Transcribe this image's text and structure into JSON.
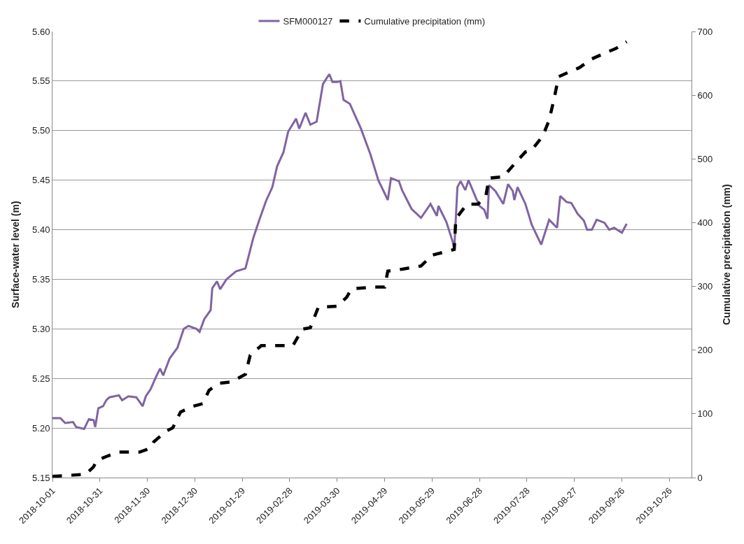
{
  "chart_data": {
    "type": "line",
    "ylabel": "Surface-water level (m)",
    "y2label": "Cumulative precipitation (mm)",
    "xlim": [
      "2018-10-01",
      "2019-11-09"
    ],
    "xticks": [
      "2018-10-01",
      "2018-10-31",
      "2018-11-30",
      "2018-12-30",
      "2019-01-29",
      "2019-02-28",
      "2019-03-30",
      "2019-04-29",
      "2019-05-29",
      "2019-06-28",
      "2019-07-28",
      "2019-08-27",
      "2019-09-26",
      "2019-10-26"
    ],
    "ylim": [
      5.15,
      5.6
    ],
    "yticks": [
      {
        "value": 5.15,
        "label": "5.15"
      },
      {
        "value": 5.2,
        "label": "5.20"
      },
      {
        "value": 5.25,
        "label": "5.25"
      },
      {
        "value": 5.3,
        "label": "5.30"
      },
      {
        "value": 5.35,
        "label": "5.35"
      },
      {
        "value": 5.4,
        "label": "5.40"
      },
      {
        "value": 5.45,
        "label": "5.45"
      },
      {
        "value": 5.5,
        "label": "5.50"
      },
      {
        "value": 5.55,
        "label": "5.55"
      },
      {
        "value": 5.6,
        "label": "5.60"
      }
    ],
    "y2lim": [
      0,
      700
    ],
    "y2ticks": [
      0,
      100,
      200,
      300,
      400,
      500,
      600,
      700
    ],
    "grid": "y",
    "legend": "top",
    "series": [
      {
        "name": "SFM000127",
        "color": "#8064a2",
        "line_style": "solid",
        "x": [
          "2018-10-01",
          "2018-10-06",
          "2018-10-09",
          "2018-10-14",
          "2018-10-16",
          "2018-10-21",
          "2018-10-24",
          "2018-10-27",
          "2018-10-28",
          "2018-10-30",
          "2018-11-02",
          "2018-11-04",
          "2018-11-06",
          "2018-11-12",
          "2018-11-14",
          "2018-11-18",
          "2018-11-23",
          "2018-11-27",
          "2018-11-29",
          "2018-12-02",
          "2018-12-05",
          "2018-12-08",
          "2018-12-10",
          "2018-12-14",
          "2018-12-19",
          "2018-12-23",
          "2018-12-26",
          "2018-12-31",
          "2019-01-02",
          "2019-01-05",
          "2019-01-09",
          "2019-01-10",
          "2019-01-13",
          "2019-01-15",
          "2019-01-19",
          "2019-01-25",
          "2019-01-31",
          "2019-02-05",
          "2019-02-09",
          "2019-02-13",
          "2019-02-17",
          "2019-02-20",
          "2019-02-24",
          "2019-02-27",
          "2019-03-04",
          "2019-03-06",
          "2019-03-10",
          "2019-03-13",
          "2019-03-17",
          "2019-03-21",
          "2019-03-25",
          "2019-03-27",
          "2019-03-30",
          "2019-04-01",
          "2019-04-03",
          "2019-04-07",
          "2019-04-14",
          "2019-04-20",
          "2019-04-25",
          "2019-05-01",
          "2019-05-03",
          "2019-05-08",
          "2019-05-10",
          "2019-05-16",
          "2019-05-22",
          "2019-05-28",
          "2019-06-01",
          "2019-06-02",
          "2019-06-07",
          "2019-06-11",
          "2019-06-12",
          "2019-06-14",
          "2019-06-16",
          "2019-06-19",
          "2019-06-21",
          "2019-06-26",
          "2019-06-28",
          "2019-07-01",
          "2019-07-03",
          "2019-07-04",
          "2019-07-08",
          "2019-07-13",
          "2019-07-16",
          "2019-07-19",
          "2019-07-20",
          "2019-07-22",
          "2019-07-27",
          "2019-07-31",
          "2019-08-06",
          "2019-08-11",
          "2019-08-16",
          "2019-08-18",
          "2019-08-22",
          "2019-08-25",
          "2019-08-29",
          "2019-09-02",
          "2019-09-04",
          "2019-09-07",
          "2019-09-10",
          "2019-09-12",
          "2019-09-15",
          "2019-09-18",
          "2019-09-21",
          "2019-09-26",
          "2019-09-29"
        ],
        "values": [
          5.21,
          5.21,
          5.205,
          5.206,
          5.201,
          5.199,
          5.209,
          5.208,
          5.201,
          5.22,
          5.222,
          5.228,
          5.231,
          5.233,
          5.228,
          5.232,
          5.231,
          5.222,
          5.232,
          5.239,
          5.25,
          5.26,
          5.253,
          5.27,
          5.281,
          5.3,
          5.303,
          5.3,
          5.297,
          5.31,
          5.319,
          5.341,
          5.348,
          5.34,
          5.35,
          5.358,
          5.361,
          5.392,
          5.411,
          5.429,
          5.443,
          5.464,
          5.478,
          5.499,
          5.512,
          5.502,
          5.518,
          5.506,
          5.509,
          5.547,
          5.557,
          5.549,
          5.549,
          5.55,
          5.531,
          5.527,
          5.502,
          5.476,
          5.45,
          5.43,
          5.452,
          5.449,
          5.44,
          5.421,
          5.412,
          5.426,
          5.414,
          5.424,
          5.408,
          5.388,
          5.38,
          5.443,
          5.449,
          5.44,
          5.45,
          5.431,
          5.424,
          5.42,
          5.411,
          5.445,
          5.439,
          5.426,
          5.446,
          5.439,
          5.43,
          5.443,
          5.426,
          5.405,
          5.385,
          5.41,
          5.402,
          5.434,
          5.428,
          5.427,
          5.416,
          5.409,
          5.4,
          5.4,
          5.41,
          5.409,
          5.407,
          5.4,
          5.402,
          5.397,
          5.406
        ]
      },
      {
        "name": "Cumulative precipitation (mm)",
        "color": "#000000",
        "line_style": "dashed",
        "axis": "y2",
        "x": [
          "2018-10-01",
          "2018-10-22",
          "2018-10-27",
          "2018-10-29",
          "2018-11-05",
          "2018-11-12",
          "2018-11-25",
          "2018-12-02",
          "2018-12-04",
          "2018-12-12",
          "2018-12-16",
          "2018-12-21",
          "2018-12-29",
          "2019-01-04",
          "2019-01-08",
          "2019-01-14",
          "2019-01-22",
          "2019-01-31",
          "2019-02-03",
          "2019-02-10",
          "2019-03-02",
          "2019-03-08",
          "2019-03-13",
          "2019-03-18",
          "2019-03-30",
          "2019-04-05",
          "2019-04-08",
          "2019-04-22",
          "2019-04-29",
          "2019-05-01",
          "2019-05-10",
          "2019-05-22",
          "2019-05-29",
          "2019-06-12",
          "2019-06-13",
          "2019-06-20",
          "2019-06-27",
          "2019-07-02",
          "2019-07-04",
          "2019-07-13",
          "2019-07-20",
          "2019-07-27",
          "2019-07-31",
          "2019-08-07",
          "2019-08-11",
          "2019-08-14",
          "2019-08-17",
          "2019-08-25",
          "2019-08-30",
          "2019-09-07",
          "2019-09-17",
          "2019-09-22",
          "2019-09-29"
        ],
        "values": [
          2,
          5,
          17,
          27,
          34,
          40,
          40,
          46,
          56,
          73,
          78,
          103,
          112,
          116,
          137,
          148,
          150,
          162,
          192,
          207,
          207,
          233,
          235,
          267,
          269,
          283,
          296,
          299,
          299,
          324,
          327,
          332,
          349,
          358,
          406,
          429,
          429,
          442,
          470,
          472,
          492,
          511,
          514,
          536,
          561,
          593,
          629,
          638,
          643,
          657,
          668,
          673,
          684
        ]
      }
    ]
  }
}
